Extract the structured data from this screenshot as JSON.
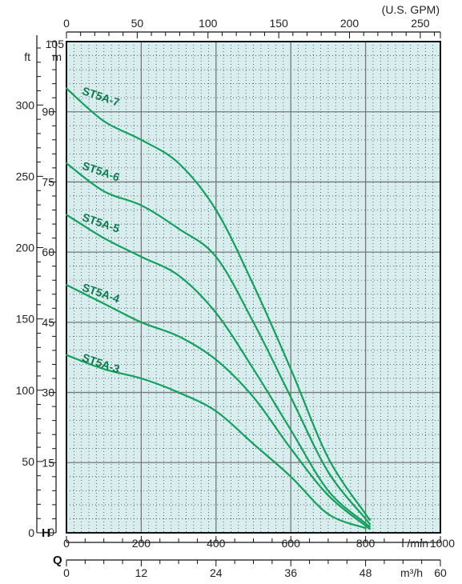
{
  "chart_data": {
    "type": "line",
    "x_unit": "l/min",
    "y_unit": "m",
    "xlim": [
      0,
      1000
    ],
    "ylim": [
      0,
      105
    ],
    "grid": true,
    "axes": {
      "top_gpm": {
        "unit": "(U.S. GPM)",
        "ticks": [
          "0",
          "50",
          "100",
          "150",
          "200",
          "250"
        ]
      },
      "bottom_lmin": {
        "unit": "l /min",
        "ticks": [
          "0",
          "200",
          "400",
          "600",
          "800",
          "1000"
        ]
      },
      "bottom_m3h": {
        "unit": "m³/h",
        "ticks": [
          "0",
          "12",
          "24",
          "36",
          "48",
          "60"
        ]
      },
      "left_m": {
        "unit": "m",
        "ticks": [
          "0",
          "15",
          "30",
          "45",
          "60",
          "75",
          "90",
          "105"
        ]
      },
      "left_ft": {
        "unit": "ft",
        "ticks": [
          "0",
          "50",
          "100",
          "150",
          "200",
          "250",
          "300"
        ]
      }
    },
    "axis_letters": {
      "head": "H",
      "flow": "Q"
    },
    "series": [
      {
        "name": "ST5A-7",
        "x": [
          0,
          100,
          200,
          300,
          400,
          500,
          600,
          700,
          800,
          810
        ],
        "y": [
          95,
          88,
          84,
          79,
          69,
          53,
          35,
          16,
          4,
          3
        ]
      },
      {
        "name": "ST5A-6",
        "x": [
          0,
          100,
          200,
          300,
          400,
          500,
          600,
          700,
          800,
          810
        ],
        "y": [
          79,
          73,
          70,
          65,
          59,
          45,
          29,
          13,
          3,
          2
        ]
      },
      {
        "name": "ST5A-5",
        "x": [
          0,
          100,
          200,
          300,
          400,
          500,
          600,
          700,
          800,
          810
        ],
        "y": [
          68,
          63,
          59,
          55,
          47,
          35,
          22,
          9,
          2,
          1.5
        ]
      },
      {
        "name": "ST5A-4",
        "x": [
          0,
          100,
          200,
          300,
          400,
          500,
          600,
          700,
          800,
          810
        ],
        "y": [
          53,
          49,
          45,
          42,
          37,
          29,
          18,
          8,
          1.5,
          1
        ]
      },
      {
        "name": "ST5A-3",
        "x": [
          0,
          100,
          200,
          300,
          400,
          500,
          600,
          700,
          800
        ],
        "y": [
          38,
          35,
          33,
          30,
          26,
          19,
          12,
          4,
          1
        ]
      }
    ],
    "colors": {
      "curve": "#12a05c",
      "plot_bg": "#d8eeee",
      "label": "#0e7a4e"
    }
  }
}
